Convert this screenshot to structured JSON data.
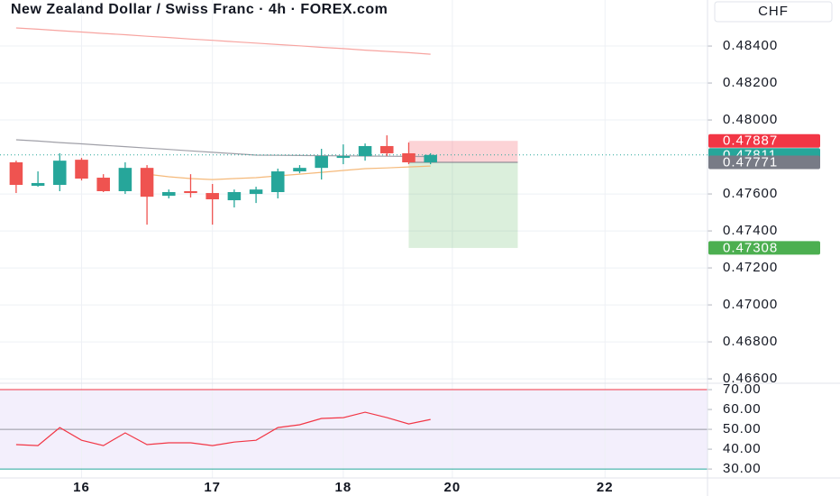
{
  "chart_data": [
    {
      "type": "candlestick",
      "title": "New Zealand Dollar / Swiss Franc · 4h · FOREX.com",
      "y_axis_label": "CHF",
      "up_color": "#26a69a",
      "down_color": "#ef5350",
      "grid": true,
      "xlim": [
        -0.74,
        31.7
      ],
      "xticks": [
        {
          "value": 3,
          "label": "16"
        },
        {
          "value": 9,
          "label": "17"
        },
        {
          "value": 15,
          "label": "18"
        },
        {
          "value": 20,
          "label": "20"
        },
        {
          "value": 27,
          "label": "22"
        }
      ],
      "ylim": [
        0.46576,
        0.48649
      ],
      "yticks": [
        {
          "value": 0.484,
          "label": "0.48400"
        },
        {
          "value": 0.482,
          "label": "0.48200"
        },
        {
          "value": 0.48,
          "label": "0.48000"
        },
        {
          "value": 0.476,
          "label": "0.47600"
        },
        {
          "value": 0.474,
          "label": "0.47400"
        },
        {
          "value": 0.472,
          "label": "0.47200"
        },
        {
          "value": 0.47,
          "label": "0.47000"
        },
        {
          "value": 0.468,
          "label": "0.46800"
        },
        {
          "value": 0.466,
          "label": "0.46600"
        }
      ],
      "open": [
        0.47771,
        0.47644,
        0.47649,
        0.47785,
        0.47688,
        0.47615,
        0.47741,
        0.4759,
        0.47615,
        0.47605,
        0.47566,
        0.476,
        0.4761,
        0.47722,
        0.47741,
        0.47795,
        0.47805,
        0.47859,
        0.4782,
        0.47771
      ],
      "high": [
        0.4778,
        0.47722,
        0.4782,
        0.47795,
        0.47707,
        0.47771,
        0.47756,
        0.47624,
        0.47707,
        0.47654,
        0.47624,
        0.47639,
        0.47737,
        0.47756,
        0.47844,
        0.47868,
        0.47873,
        0.47917,
        0.47878,
        0.4782
      ],
      "low": [
        0.47605,
        0.47639,
        0.47615,
        0.47673,
        0.4761,
        0.476,
        0.47434,
        0.47576,
        0.47581,
        0.47434,
        0.47527,
        0.47551,
        0.47576,
        0.47712,
        0.47678,
        0.47761,
        0.4778,
        0.47805,
        0.47761,
        0.47761
      ],
      "close": [
        0.47649,
        0.47659,
        0.4778,
        0.47683,
        0.47615,
        0.47741,
        0.47585,
        0.4761,
        0.47605,
        0.47571,
        0.4761,
        0.47624,
        0.47722,
        0.47741,
        0.47805,
        0.47805,
        0.47859,
        0.4782,
        0.47771,
        0.47811
      ],
      "series": [
        {
          "color": "#f7a4a0",
          "values": [
            0.48498,
            0.48491,
            0.48483,
            0.48476,
            0.48468,
            0.48461,
            0.48453,
            0.48446,
            0.48438,
            0.48431,
            0.48423,
            0.48416,
            0.48408,
            0.48401,
            0.48393,
            0.48386,
            0.48378,
            0.48371,
            0.48364,
            0.48356
          ]
        },
        {
          "color": "#a0a0a8",
          "values": [
            0.47893,
            0.47886,
            0.47878,
            0.47871,
            0.47863,
            0.47856,
            0.47848,
            0.47841,
            0.47833,
            0.47825,
            0.47818,
            0.4781,
            0.47809,
            0.47808,
            0.47807,
            0.47806,
            0.47805,
            0.47804,
            0.47803,
            0.47802
          ]
        },
        {
          "color": "#f5b97a",
          "values": [
            null,
            null,
            null,
            null,
            null,
            null,
            0.47707,
            0.47693,
            0.47683,
            0.47678,
            0.47683,
            0.47688,
            0.47698,
            0.47707,
            0.47717,
            0.47727,
            0.47737,
            0.47741,
            0.47746,
            0.47751
          ]
        }
      ],
      "position": {
        "from": 18,
        "to": 23,
        "stop": 0.47887,
        "entry": 0.47771,
        "target": 0.47308
      },
      "last_price": 0.47811
    },
    {
      "type": "line",
      "xlim": [
        -0.74,
        31.7
      ],
      "ylim": [
        25.5,
        73.2
      ],
      "yticks": [
        {
          "value": 70,
          "label": "70.00"
        },
        {
          "value": 60,
          "label": "60.00"
        },
        {
          "value": 50,
          "label": "50.00"
        },
        {
          "value": 40,
          "label": "40.00"
        },
        {
          "value": 30,
          "label": "30.00"
        }
      ],
      "band": [
        30,
        70
      ],
      "color": "#f23645",
      "values": [
        42.3,
        41.8,
        50.9,
        44.5,
        41.8,
        48.2,
        42.3,
        43.2,
        43.2,
        41.8,
        43.6,
        44.5,
        50.9,
        52.3,
        55.5,
        55.9,
        58.6,
        55.9,
        52.7,
        55.0
      ]
    }
  ]
}
